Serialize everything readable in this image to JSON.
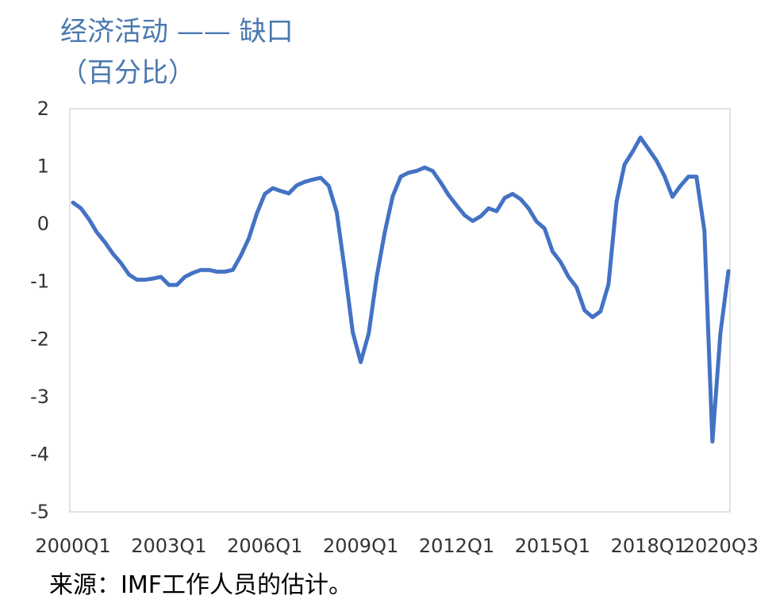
{
  "chart_data": {
    "type": "line",
    "title": "经济活动 —— 缺口",
    "subtitle": "（百分比）",
    "source": "来源：IMF工作人员的估计。",
    "ylim": [
      -5,
      2
    ],
    "yticks": [
      "2",
      "1",
      "0",
      "-1",
      "-2",
      "-3",
      "-4",
      "-5"
    ],
    "xticks": [
      "2000Q1",
      "2003Q1",
      "2006Q1",
      "2009Q1",
      "2012Q1",
      "2015Q1",
      "2018Q1",
      "2020Q3"
    ],
    "grid": false,
    "line_color": "#4472c4",
    "series": [
      {
        "values": [
          0.37,
          0.27,
          0.08,
          -0.15,
          -0.32,
          -0.52,
          -0.68,
          -0.88,
          -0.97,
          -0.97,
          -0.95,
          -0.92,
          -1.06,
          -1.06,
          -0.92,
          -0.85,
          -0.8,
          -0.8,
          -0.83,
          -0.83,
          -0.8,
          -0.55,
          -0.25,
          0.18,
          0.52,
          0.62,
          0.57,
          0.53,
          0.67,
          0.73,
          0.77,
          0.8,
          0.66,
          0.2,
          -0.8,
          -1.88,
          -2.4,
          -1.9,
          -0.92,
          -0.15,
          0.48,
          0.82,
          0.89,
          0.92,
          0.98,
          0.92,
          0.72,
          0.5,
          0.32,
          0.15,
          0.05,
          0.13,
          0.27,
          0.22,
          0.45,
          0.52,
          0.43,
          0.27,
          0.04,
          -0.08,
          -0.48,
          -0.66,
          -0.92,
          -1.1,
          -1.5,
          -1.62,
          -1.52,
          -1.05,
          0.38,
          1.03,
          1.25,
          1.5,
          1.3,
          1.1,
          0.83,
          0.47,
          0.66,
          0.82,
          0.82,
          -0.12,
          -3.78,
          -1.9,
          -0.82
        ]
      }
    ]
  }
}
